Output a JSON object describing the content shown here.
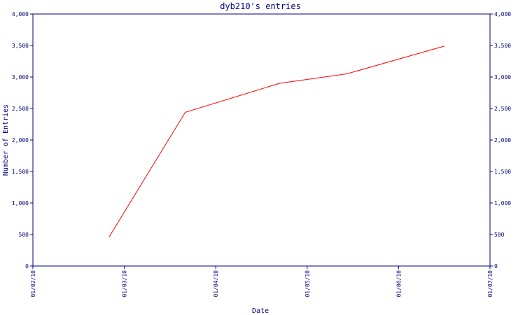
{
  "chart_data": {
    "type": "line",
    "title": "dyb210's entries",
    "xlabel": "Date",
    "ylabel": "Number of Entries",
    "x_tick_labels": [
      "01/02/10",
      "01/03/10",
      "01/04/10",
      "01/05/10",
      "01/06/10",
      "01/07/10"
    ],
    "y_tick_labels": [
      "0",
      "500",
      "1,000",
      "1,500",
      "2,000",
      "2,500",
      "3,000",
      "3,500",
      "4,000"
    ],
    "y_ticks": [
      0,
      500,
      1000,
      1500,
      2000,
      2500,
      3000,
      3500,
      4000
    ],
    "ylim": [
      0,
      4000
    ],
    "xlim": [
      "2010-02-01",
      "2010-07-01"
    ],
    "grid": false,
    "line_color": "#ff0000",
    "axis_color": "#000080",
    "series": [
      {
        "values": [
          {
            "x": "2010-02-26",
            "y": 460
          },
          {
            "x": "2010-03-23",
            "y": 2440
          },
          {
            "x": "2010-04-23",
            "y": 2900
          },
          {
            "x": "2010-05-15",
            "y": 3050
          },
          {
            "x": "2010-06-16",
            "y": 3490
          }
        ]
      }
    ]
  }
}
